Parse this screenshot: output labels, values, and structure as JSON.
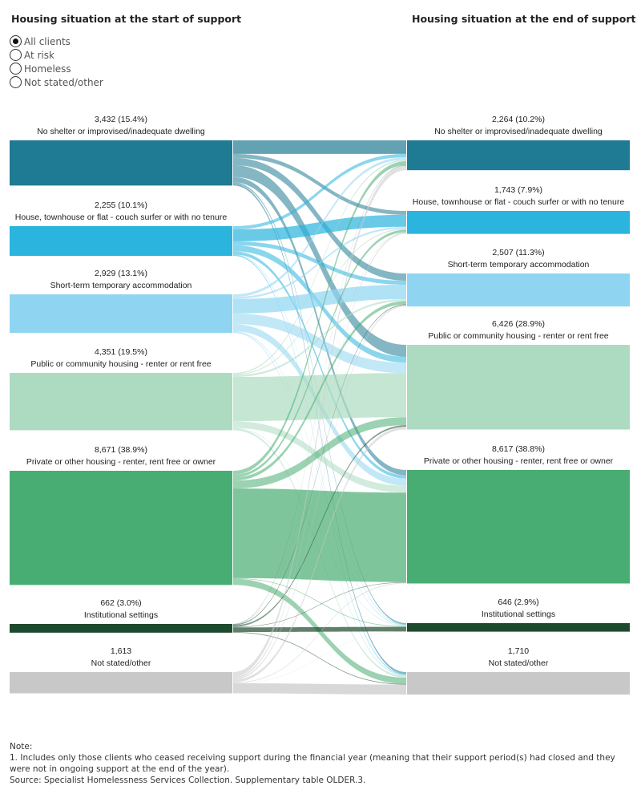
{
  "header": {
    "left_title": "Housing situation at the start of support",
    "right_title": "Housing situation at the end of support"
  },
  "filter": {
    "options": [
      "All clients",
      "At risk",
      "Homeless",
      "Not stated/other"
    ],
    "selected": "All clients"
  },
  "chart_data": {
    "type": "sankey",
    "title": "",
    "sources": [
      {
        "name": "No shelter or improvised/inadequate dwelling",
        "value": 3432,
        "value_label": "3,432 (15.4%)",
        "color": "#1f7a93"
      },
      {
        "name": "House, townhouse or flat - couch surfer or with no tenure",
        "value": 2255,
        "value_label": "2,255 (10.1%)",
        "color": "#2ab4de"
      },
      {
        "name": "Short-term temporary accommodation",
        "value": 2929,
        "value_label": "2,929 (13.1%)",
        "color": "#8fd5f2"
      },
      {
        "name": "Public or community housing - renter or rent free",
        "value": 4351,
        "value_label": "4,351 (19.5%)",
        "color": "#acdbc1"
      },
      {
        "name": "Private or other housing - renter, rent free or owner",
        "value": 8671,
        "value_label": "8,671 (38.9%)",
        "color": "#48ad72"
      },
      {
        "name": "Institutional settings",
        "value": 662,
        "value_label": "662 (3.0%)",
        "color": "#1d4a2e"
      },
      {
        "name": "Not stated/other",
        "value": 1613,
        "value_label": "1,613",
        "color": "#c8c8c8"
      }
    ],
    "targets": [
      {
        "name": "No shelter or improvised/inadequate dwelling",
        "value": 2264,
        "value_label": "2,264 (10.2%)",
        "color": "#1f7a93"
      },
      {
        "name": "House, townhouse or flat - couch surfer or with no tenure",
        "value": 1743,
        "value_label": "1,743 (7.9%)",
        "color": "#2ab4de"
      },
      {
        "name": "Short-term temporary accommodation",
        "value": 2507,
        "value_label": "2,507 (11.3%)",
        "color": "#8fd5f2"
      },
      {
        "name": "Public or community housing - renter or rent free",
        "value": 6426,
        "value_label": "6,426 (28.9%)",
        "color": "#acdbc1"
      },
      {
        "name": "Private or other housing - renter, rent free or owner",
        "value": 8617,
        "value_label": "8,617 (38.8%)",
        "color": "#48ad72"
      },
      {
        "name": "Institutional settings",
        "value": 646,
        "value_label": "646 (2.9%)",
        "color": "#1d4a2e"
      },
      {
        "name": "Not stated/other",
        "value": 1710,
        "value_label": "1,710",
        "color": "#c8c8c8"
      }
    ],
    "flows": [
      [
        1030,
        300,
        550,
        900,
        400,
        100,
        152
      ],
      [
        250,
        900,
        300,
        450,
        250,
        30,
        75
      ],
      [
        200,
        150,
        1100,
        800,
        550,
        60,
        69
      ],
      [
        100,
        70,
        140,
        3350,
        520,
        40,
        131
      ],
      [
        300,
        200,
        250,
        600,
        6800,
        50,
        471
      ],
      [
        30,
        10,
        60,
        120,
        40,
        350,
        52
      ],
      [
        354,
        113,
        107,
        206,
        57,
        16,
        760
      ]
    ]
  },
  "notes": {
    "heading": "Note:",
    "item1": "1.  Includes only those clients who ceased receiving support during the financial year (meaning that their support period(s) had closed and they were not in ongoing support at the end of the year).",
    "source": "Source: Specialist Homelessness Services Collection. Supplementary table OLDER.3."
  }
}
